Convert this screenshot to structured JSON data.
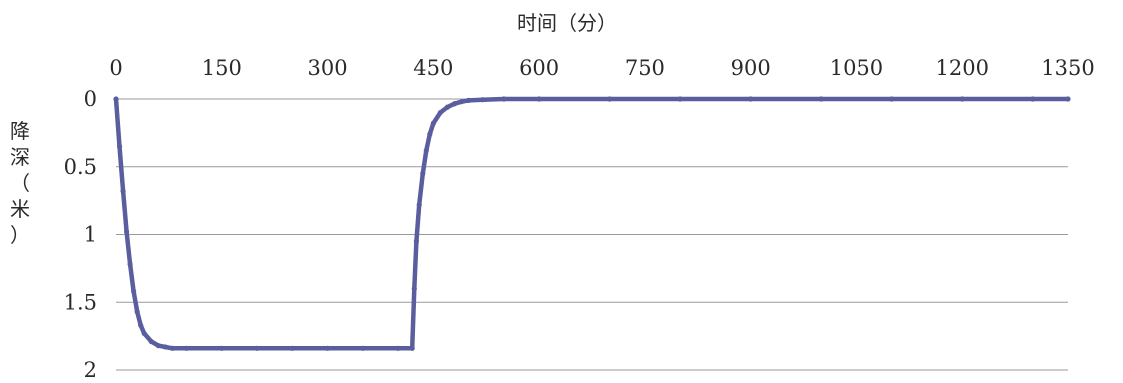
{
  "chart_data": {
    "type": "scatter",
    "title": "",
    "xlabel": "时间（分）",
    "ylabel": "降深（米）",
    "xlim": [
      0,
      1350
    ],
    "ylim": [
      0,
      2
    ],
    "y_inverted": true,
    "x_axis_position": "top",
    "grid": "horizontal",
    "x_ticks": [
      "0",
      "150",
      "300",
      "450",
      "600",
      "750",
      "900",
      "1050",
      "1200",
      "1350"
    ],
    "y_ticks": [
      "0",
      "0.5",
      "1",
      "1.5",
      "2"
    ],
    "series": [
      {
        "color": "#5a5e9e",
        "x": [
          0,
          5,
          10,
          15,
          20,
          25,
          30,
          35,
          40,
          50,
          60,
          70,
          80,
          100,
          150,
          200,
          250,
          300,
          350,
          400,
          420,
          423,
          426,
          430,
          435,
          440,
          445,
          450,
          460,
          470,
          480,
          490,
          500,
          520,
          550,
          600,
          700,
          800,
          900,
          1000,
          1100,
          1200,
          1300,
          1350
        ],
        "y": [
          0,
          0.35,
          0.68,
          0.98,
          1.22,
          1.42,
          1.57,
          1.67,
          1.73,
          1.79,
          1.82,
          1.83,
          1.84,
          1.84,
          1.84,
          1.84,
          1.84,
          1.84,
          1.84,
          1.84,
          1.84,
          1.4,
          1.05,
          0.78,
          0.55,
          0.38,
          0.26,
          0.18,
          0.1,
          0.06,
          0.035,
          0.02,
          0.01,
          0.005,
          0,
          0,
          0,
          0,
          0,
          0,
          0,
          0,
          0,
          0
        ]
      }
    ]
  }
}
